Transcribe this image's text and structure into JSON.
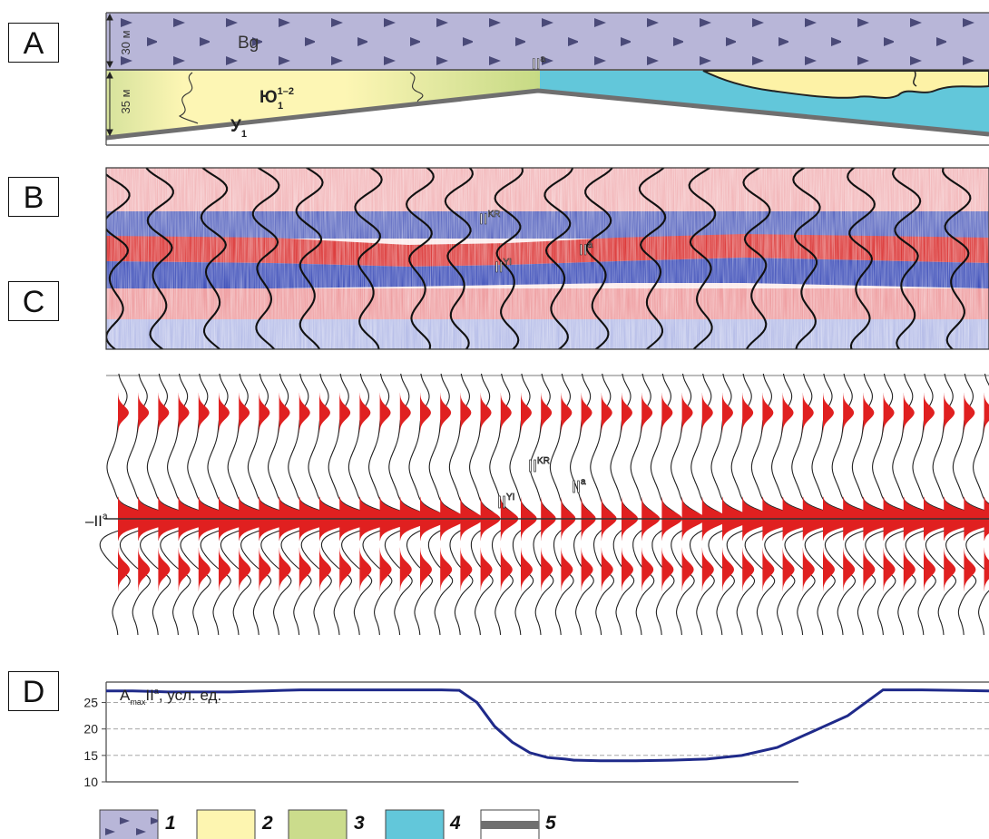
{
  "panels": {
    "a": {
      "label": "A"
    },
    "b": {
      "label": "B"
    },
    "c": {
      "label": "C"
    },
    "d": {
      "label": "D"
    }
  },
  "section_a": {
    "thickness_top": "30 м",
    "thickness_bottom": "35 м",
    "unit_bg": "Bg",
    "unit_yu": "Ю",
    "unit_yu_sup": "1–2",
    "unit_yu_sub": "1",
    "unit_u": "У",
    "unit_u_sub": "1",
    "horizon": "II",
    "horizon_sup": "a"
  },
  "section_b": {
    "label_kr": "II",
    "label_kr_sup": "KR",
    "label_yi": "II",
    "label_yi_sup": "YI",
    "label_a": "II",
    "label_a_sup": "a"
  },
  "section_c": {
    "label_kr": "II",
    "label_kr_sup": "KR",
    "label_yi": "II",
    "label_yi_sup": "YI",
    "label_a": "II",
    "label_a_sup": "a",
    "left_marker": "–II",
    "left_marker_sup": "a"
  },
  "chart_data": {
    "type": "line",
    "title_main": "A",
    "title_sub": "max",
    "title_horizon": "II",
    "title_sup": "a",
    "title_units": ", усл. ед.",
    "ylim": [
      10,
      30
    ],
    "yticks": [
      "25",
      "20",
      "15",
      "10"
    ],
    "grid": "dashed horizontal",
    "line_color": "#1f2a8a",
    "x": [
      0,
      1,
      3,
      5,
      7,
      9,
      11,
      13,
      14,
      16,
      18,
      20,
      22,
      24,
      26,
      28,
      30,
      32,
      34,
      36,
      38,
      40,
      42,
      44,
      46,
      48,
      50,
      52,
      53,
      56,
      60,
      64,
      68,
      72,
      76,
      80,
      84,
      88,
      92,
      96,
      100
    ],
    "values": [
      27.2,
      27.2,
      27.2,
      27.1,
      27.0,
      27.0,
      27.0,
      27.0,
      27.0,
      27.1,
      27.2,
      27.3,
      27.4,
      27.4,
      27.4,
      27.4,
      27.4,
      27.4,
      27.4,
      27.4,
      27.4,
      27.3,
      25.0,
      20.5,
      17.5,
      15.5,
      14.6,
      14.3,
      14.1,
      14.0,
      14.0,
      14.1,
      14.3,
      15.0,
      16.5,
      19.5,
      22.5,
      27.4,
      27.4,
      27.3,
      27.2
    ]
  },
  "legend": [
    {
      "num": "1",
      "fill": "#b8b6d8",
      "pattern": "triangles"
    },
    {
      "num": "2",
      "fill": "#fdf5b0",
      "pattern": "none"
    },
    {
      "num": "3",
      "fill": "#cbdc8c",
      "pattern": "none"
    },
    {
      "num": "4",
      "fill": "#62c7da",
      "pattern": "none"
    },
    {
      "num": "5",
      "fill": "#6f6f6f",
      "pattern": "bar"
    }
  ],
  "colors": {
    "bg_layer": "#b8b6d8",
    "yellow": "#fdf5b0",
    "green": "#cbdc8c",
    "cyan": "#62c7da",
    "basement": "#6f6f6f",
    "seis_red": "#d92020",
    "seis_blue": "#2438a8"
  }
}
